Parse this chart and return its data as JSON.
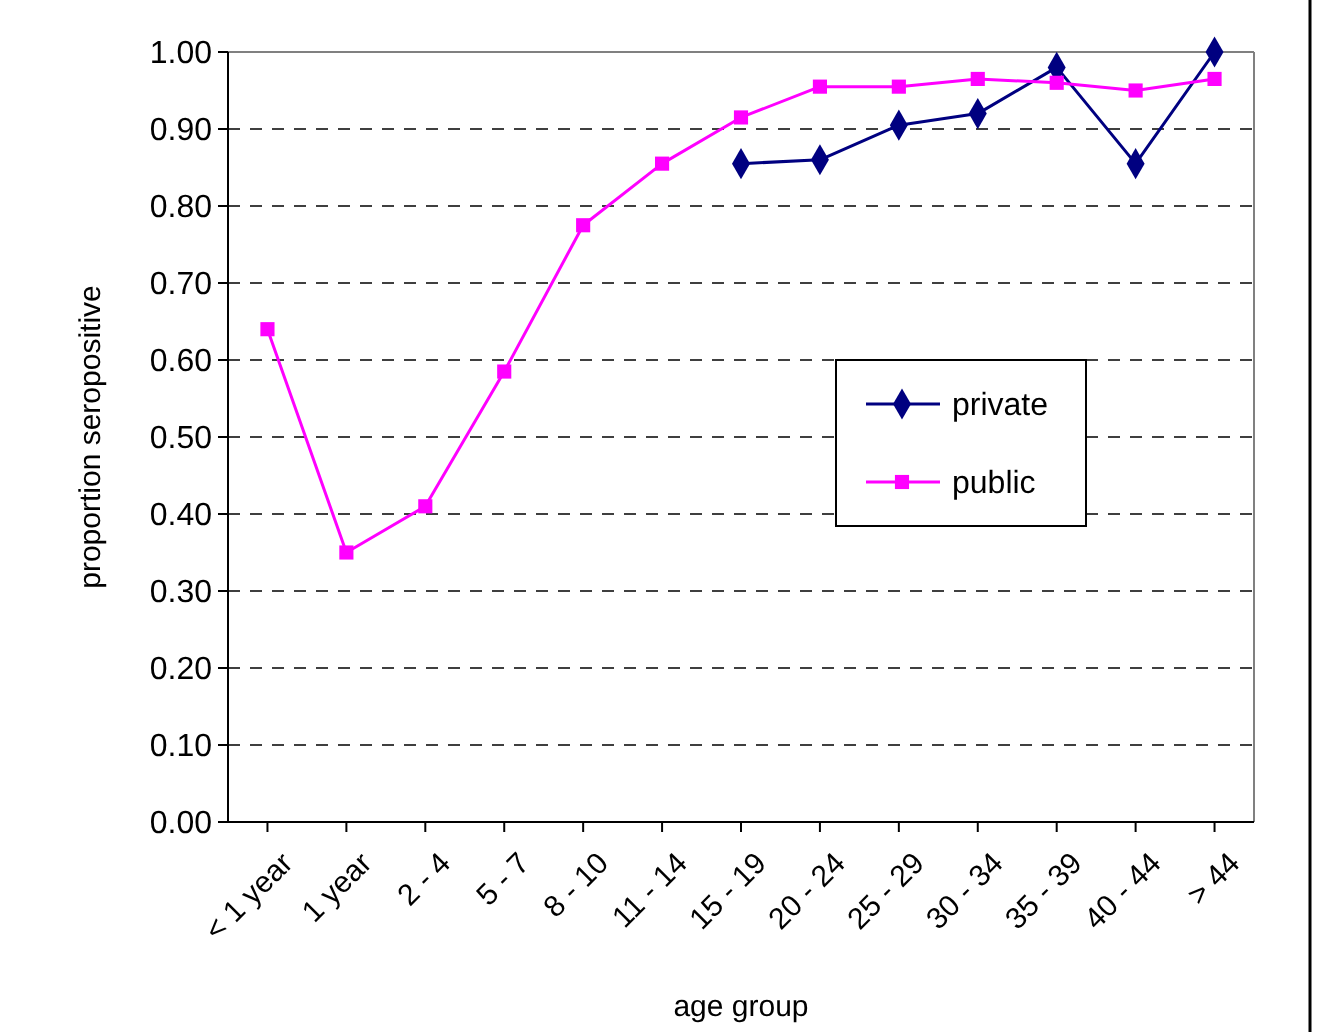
{
  "chart_data": {
    "type": "line",
    "xlabel": "age group",
    "ylabel": "proportion seropositive",
    "categories": [
      "< 1 year",
      "1 year",
      "2 - 4",
      "5 - 7",
      "8 - 10",
      "11 - 14",
      "15 - 19",
      "20 - 24",
      "25 - 29",
      "30 - 34",
      "35 - 39",
      "40 - 44",
      "> 44"
    ],
    "series": [
      {
        "name": "private",
        "color": "#000080",
        "marker": "diamond",
        "values": [
          null,
          null,
          null,
          null,
          null,
          null,
          0.855,
          0.86,
          0.905,
          0.92,
          0.98,
          0.855,
          1.0
        ]
      },
      {
        "name": "public",
        "color": "#ff00ff",
        "marker": "square",
        "values": [
          0.64,
          0.35,
          0.41,
          0.585,
          0.775,
          0.855,
          0.915,
          0.955,
          0.955,
          0.965,
          0.96,
          0.95,
          0.965
        ]
      }
    ],
    "ylim": [
      0,
      1
    ],
    "yticks": [
      {
        "value": 0,
        "label": "0.00"
      },
      {
        "value": 0.1,
        "label": "0.10"
      },
      {
        "value": 0.2,
        "label": "0.20"
      },
      {
        "value": 0.3,
        "label": "0.30"
      },
      {
        "value": 0.4,
        "label": "0.40"
      },
      {
        "value": 0.5,
        "label": "0.50"
      },
      {
        "value": 0.6,
        "label": "0.60"
      },
      {
        "value": 0.7,
        "label": "0.70"
      },
      {
        "value": 0.8,
        "label": "0.80"
      },
      {
        "value": 0.9,
        "label": "0.90"
      },
      {
        "value": 1,
        "label": "1.00"
      }
    ],
    "grid": "y",
    "legend": "right",
    "line_style": "solid"
  }
}
